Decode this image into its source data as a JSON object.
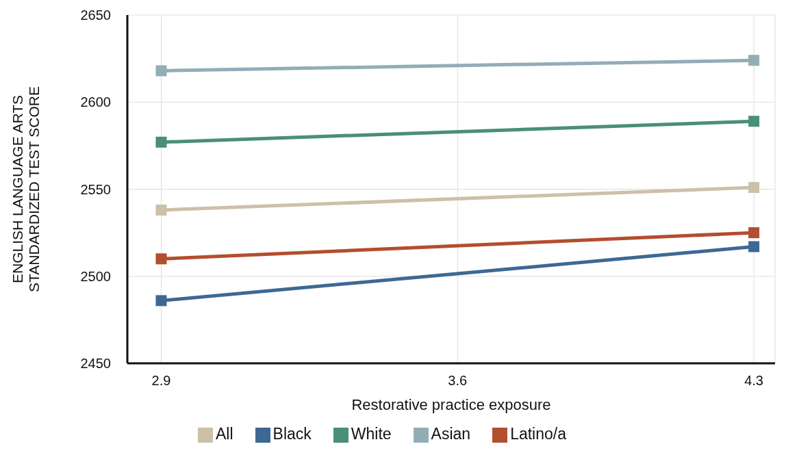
{
  "chart_data": {
    "type": "line",
    "xlabel": "Restorative practice exposure",
    "ylabel": "ENGLISH LANGUAGE ARTS\nSTANDARDIZED TEST SCORE",
    "x": [
      2.9,
      4.3
    ],
    "series": [
      {
        "name": "All",
        "color": "#cdc0a8",
        "values": [
          2538,
          2551
        ]
      },
      {
        "name": "Black",
        "color": "#3e6894",
        "values": [
          2486,
          2517
        ]
      },
      {
        "name": "White",
        "color": "#4a8f78",
        "values": [
          2577,
          2589
        ]
      },
      {
        "name": "Asian",
        "color": "#93adb7",
        "values": [
          2618,
          2624
        ]
      },
      {
        "name": "Latino/a",
        "color": "#b34e2e",
        "values": [
          2510,
          2525
        ]
      }
    ],
    "xlim": [
      2.82,
      4.35
    ],
    "xticks": [
      2.9,
      3.6,
      4.3
    ],
    "ylim": [
      2450,
      2650
    ],
    "yticks": [
      2450,
      2500,
      2550,
      2600,
      2650
    ],
    "grid": true,
    "legend": "bottom",
    "marker": "square",
    "line_style": "solid"
  }
}
